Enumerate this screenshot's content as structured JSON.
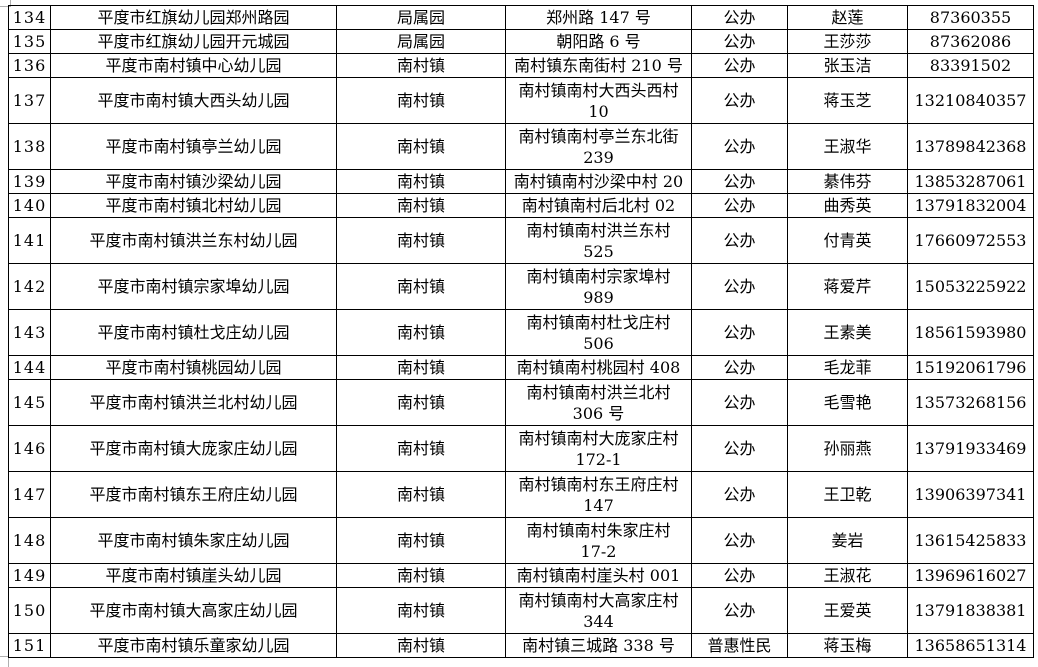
{
  "page": {
    "background_color": "#ffffff",
    "border_color": "#000000",
    "text_color": "#000000"
  },
  "table": {
    "description_semantic": "list-of-kindergartens-table-rows-134-151",
    "rows": [
      {
        "no": "134",
        "name": "平度市红旗幼儿园郑州路园",
        "town": "局属园",
        "address": [
          "郑州路 147 号"
        ],
        "type": "公办",
        "contact": "赵莲",
        "phone": "87360355"
      },
      {
        "no": "135",
        "name": "平度市红旗幼儿园开元城园",
        "town": "局属园",
        "address": [
          "朝阳路 6 号"
        ],
        "type": "公办",
        "contact": "王莎莎",
        "phone": "87362086"
      },
      {
        "no": "136",
        "name": "平度市南村镇中心幼儿园",
        "town": "南村镇",
        "address": [
          "南村镇东南街村 210 号"
        ],
        "type": "公办",
        "contact": "张玉洁",
        "phone": "83391502"
      },
      {
        "no": "137",
        "name": "平度市南村镇大西头幼儿园",
        "town": "南村镇",
        "address": [
          "南村镇南村大西头西村",
          "10"
        ],
        "type": "公办",
        "contact": "蒋玉芝",
        "phone": "13210840357"
      },
      {
        "no": "138",
        "name": "平度市南村镇亭兰幼儿园",
        "town": "南村镇",
        "address": [
          "南村镇南村亭兰东北街",
          "239"
        ],
        "type": "公办",
        "contact": "王淑华",
        "phone": "13789842368"
      },
      {
        "no": "139",
        "name": "平度市南村镇沙梁幼儿园",
        "town": "南村镇",
        "address": [
          "南村镇南村沙梁中村 20"
        ],
        "type": "公办",
        "contact": "綦伟芬",
        "phone": "13853287061"
      },
      {
        "no": "140",
        "name": "平度市南村镇北村幼儿园",
        "town": "南村镇",
        "address": [
          "南村镇南村后北村 02"
        ],
        "type": "公办",
        "contact": "曲秀英",
        "phone": "13791832004"
      },
      {
        "no": "141",
        "name": "平度市南村镇洪兰东村幼儿园",
        "town": "南村镇",
        "address": [
          "南村镇南村洪兰东村",
          "525"
        ],
        "type": "公办",
        "contact": "付青英",
        "phone": "17660972553"
      },
      {
        "no": "142",
        "name": "平度市南村镇宗家埠幼儿园",
        "town": "南村镇",
        "address": [
          "南村镇南村宗家埠村",
          "989"
        ],
        "type": "公办",
        "contact": "蒋爱芹",
        "phone": "15053225922"
      },
      {
        "no": "143",
        "name": "平度市南村镇杜戈庄幼儿园",
        "town": "南村镇",
        "address": [
          "南村镇南村杜戈庄村",
          "506"
        ],
        "type": "公办",
        "contact": "王素美",
        "phone": "18561593980"
      },
      {
        "no": "144",
        "name": "平度市南村镇桃园幼儿园",
        "town": "南村镇",
        "address": [
          "南村镇南村桃园村 408"
        ],
        "type": "公办",
        "contact": "毛龙菲",
        "phone": "15192061796"
      },
      {
        "no": "145",
        "name": "平度市南村镇洪兰北村幼儿园",
        "town": "南村镇",
        "address": [
          "南村镇南村洪兰北村",
          "306 号"
        ],
        "type": "公办",
        "contact": "毛雪艳",
        "phone": "13573268156"
      },
      {
        "no": "146",
        "name": "平度市南村镇大庞家庄幼儿园",
        "town": "南村镇",
        "address": [
          "南村镇南村大庞家庄村",
          "172-1"
        ],
        "type": "公办",
        "contact": "孙丽燕",
        "phone": "13791933469"
      },
      {
        "no": "147",
        "name": "平度市南村镇东王府庄幼儿园",
        "town": "南村镇",
        "address": [
          "南村镇南村东王府庄村",
          "147"
        ],
        "type": "公办",
        "contact": "王卫乾",
        "phone": "13906397341"
      },
      {
        "no": "148",
        "name": "平度市南村镇朱家庄幼儿园",
        "town": "南村镇",
        "address": [
          "南村镇南村朱家庄村",
          "17-2"
        ],
        "type": "公办",
        "contact": "姜岩",
        "phone": "13615425833"
      },
      {
        "no": "149",
        "name": "平度市南村镇崖头幼儿园",
        "town": "南村镇",
        "address": [
          "南村镇南村崖头村 001"
        ],
        "type": "公办",
        "contact": "王淑花",
        "phone": "13969616027"
      },
      {
        "no": "150",
        "name": "平度市南村镇大高家庄幼儿园",
        "town": "南村镇",
        "address": [
          "南村镇南村大高家庄村",
          "344"
        ],
        "type": "公办",
        "contact": "王爱英",
        "phone": "13791838381"
      },
      {
        "no": "151",
        "name": "平度市南村镇乐童家幼儿园",
        "town": "南村镇",
        "address": [
          "南村镇三城路 338 号"
        ],
        "type": "普惠性民",
        "contact": "蒋玉梅",
        "phone": "13658651314"
      }
    ]
  }
}
